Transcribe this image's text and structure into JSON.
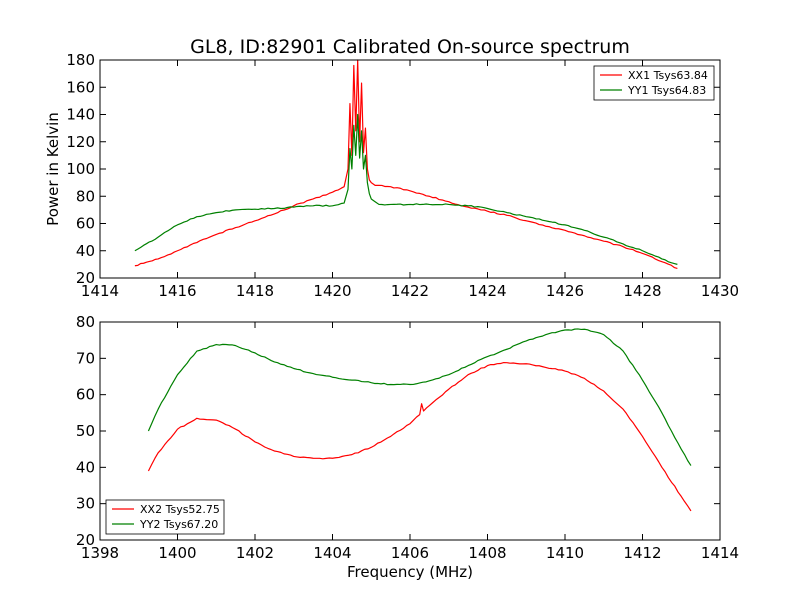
{
  "title": "GL8, ID:82901 Calibrated On-source spectrum",
  "chart_data": [
    {
      "type": "line",
      "xlabel": "",
      "ylabel": "Power in Kelvin",
      "xlim": [
        1414,
        1430
      ],
      "ylim": [
        20,
        180
      ],
      "xticks": [
        1414,
        1416,
        1418,
        1420,
        1422,
        1424,
        1426,
        1428,
        1430
      ],
      "yticks": [
        20,
        40,
        60,
        80,
        100,
        120,
        140,
        160,
        180
      ],
      "legend": "top-right",
      "series": [
        {
          "name": "XX1 Tsys63.84",
          "color": "#ff0000",
          "x": [
            1414.9,
            1415.5,
            1416.0,
            1416.5,
            1417.0,
            1417.5,
            1418.0,
            1418.5,
            1419.0,
            1419.5,
            1420.0,
            1420.3,
            1420.4,
            1420.45,
            1420.5,
            1420.55,
            1420.6,
            1420.65,
            1420.7,
            1420.75,
            1420.8,
            1420.85,
            1420.9,
            1420.95,
            1421.0,
            1421.1,
            1421.2,
            1421.5,
            1422.0,
            1422.5,
            1423.0,
            1423.5,
            1424.0,
            1424.5,
            1425.0,
            1425.5,
            1426.0,
            1426.5,
            1427.0,
            1427.5,
            1428.0,
            1428.5,
            1428.9
          ],
          "y": [
            29,
            34,
            40,
            46,
            52,
            57,
            62,
            67,
            73,
            78,
            83,
            87,
            100,
            148,
            110,
            176,
            128,
            180,
            120,
            163,
            112,
            130,
            100,
            92,
            90,
            88,
            88,
            87,
            84,
            80,
            76,
            72,
            69,
            66,
            62,
            58,
            55,
            51,
            47,
            43,
            38,
            32,
            27
          ]
        },
        {
          "name": "YY1 Tsys64.83",
          "color": "#008000",
          "x": [
            1414.9,
            1415.5,
            1416.0,
            1416.5,
            1417.0,
            1417.5,
            1418.0,
            1418.5,
            1419.0,
            1419.5,
            1420.0,
            1420.3,
            1420.4,
            1420.45,
            1420.5,
            1420.55,
            1420.6,
            1420.65,
            1420.7,
            1420.75,
            1420.8,
            1420.85,
            1420.9,
            1420.95,
            1421.0,
            1421.1,
            1421.2,
            1421.5,
            1422.0,
            1422.5,
            1423.0,
            1423.5,
            1424.0,
            1424.5,
            1425.0,
            1425.5,
            1426.0,
            1426.5,
            1427.0,
            1427.5,
            1428.0,
            1428.5,
            1428.9
          ],
          "y": [
            40,
            50,
            59,
            65,
            68,
            70,
            70.5,
            71,
            72,
            73,
            73,
            75,
            85,
            115,
            100,
            132,
            110,
            140,
            108,
            128,
            100,
            110,
            90,
            82,
            78,
            76,
            74,
            74,
            74,
            74,
            74,
            73,
            71,
            68,
            65,
            62,
            59,
            55,
            50,
            45,
            40,
            34,
            30
          ]
        }
      ]
    },
    {
      "type": "line",
      "xlabel": "Frequency (MHz)",
      "ylabel": "",
      "xlim": [
        1398,
        1414
      ],
      "ylim": [
        20,
        80
      ],
      "xticks": [
        1398,
        1400,
        1402,
        1404,
        1406,
        1408,
        1410,
        1412,
        1414
      ],
      "yticks": [
        20,
        30,
        40,
        50,
        60,
        70,
        80
      ],
      "legend": "bottom-left",
      "series": [
        {
          "name": "XX2 Tsys52.75",
          "color": "#ff0000",
          "x": [
            1399.25,
            1399.5,
            1400.0,
            1400.5,
            1401.0,
            1401.5,
            1402.0,
            1402.5,
            1403.0,
            1403.5,
            1404.0,
            1404.5,
            1405.0,
            1405.5,
            1406.0,
            1406.25,
            1406.3,
            1406.35,
            1406.5,
            1407.0,
            1407.5,
            1408.0,
            1408.5,
            1409.0,
            1409.5,
            1410.0,
            1410.5,
            1411.0,
            1411.5,
            1412.0,
            1412.5,
            1413.0,
            1413.25
          ],
          "y": [
            39,
            44,
            50.5,
            53.5,
            53,
            50.5,
            47,
            44.5,
            43,
            42.5,
            42.5,
            43.5,
            45.5,
            48.5,
            52,
            54.5,
            57.5,
            55.5,
            57,
            61.5,
            65.5,
            68,
            68.8,
            68.5,
            67.5,
            66.5,
            64.5,
            61,
            56,
            48.5,
            40,
            32,
            28
          ]
        },
        {
          "name": "YY2 Tsys67.20",
          "color": "#008000",
          "x": [
            1399.25,
            1399.5,
            1400.0,
            1400.5,
            1401.0,
            1401.5,
            1402.0,
            1402.5,
            1403.0,
            1403.5,
            1404.0,
            1404.5,
            1405.0,
            1405.5,
            1406.0,
            1406.5,
            1407.0,
            1407.5,
            1408.0,
            1408.5,
            1409.0,
            1409.5,
            1410.0,
            1410.5,
            1411.0,
            1411.5,
            1412.0,
            1412.5,
            1413.0,
            1413.25
          ],
          "y": [
            50,
            56,
            65.5,
            72,
            73.8,
            73.5,
            71.5,
            69,
            67.2,
            65.8,
            64.8,
            64,
            63.3,
            62.8,
            62.8,
            63.8,
            65.5,
            68,
            70.5,
            72.5,
            74.8,
            76.5,
            77.8,
            78,
            76.5,
            72,
            64,
            55,
            45,
            40.5
          ]
        }
      ]
    }
  ]
}
